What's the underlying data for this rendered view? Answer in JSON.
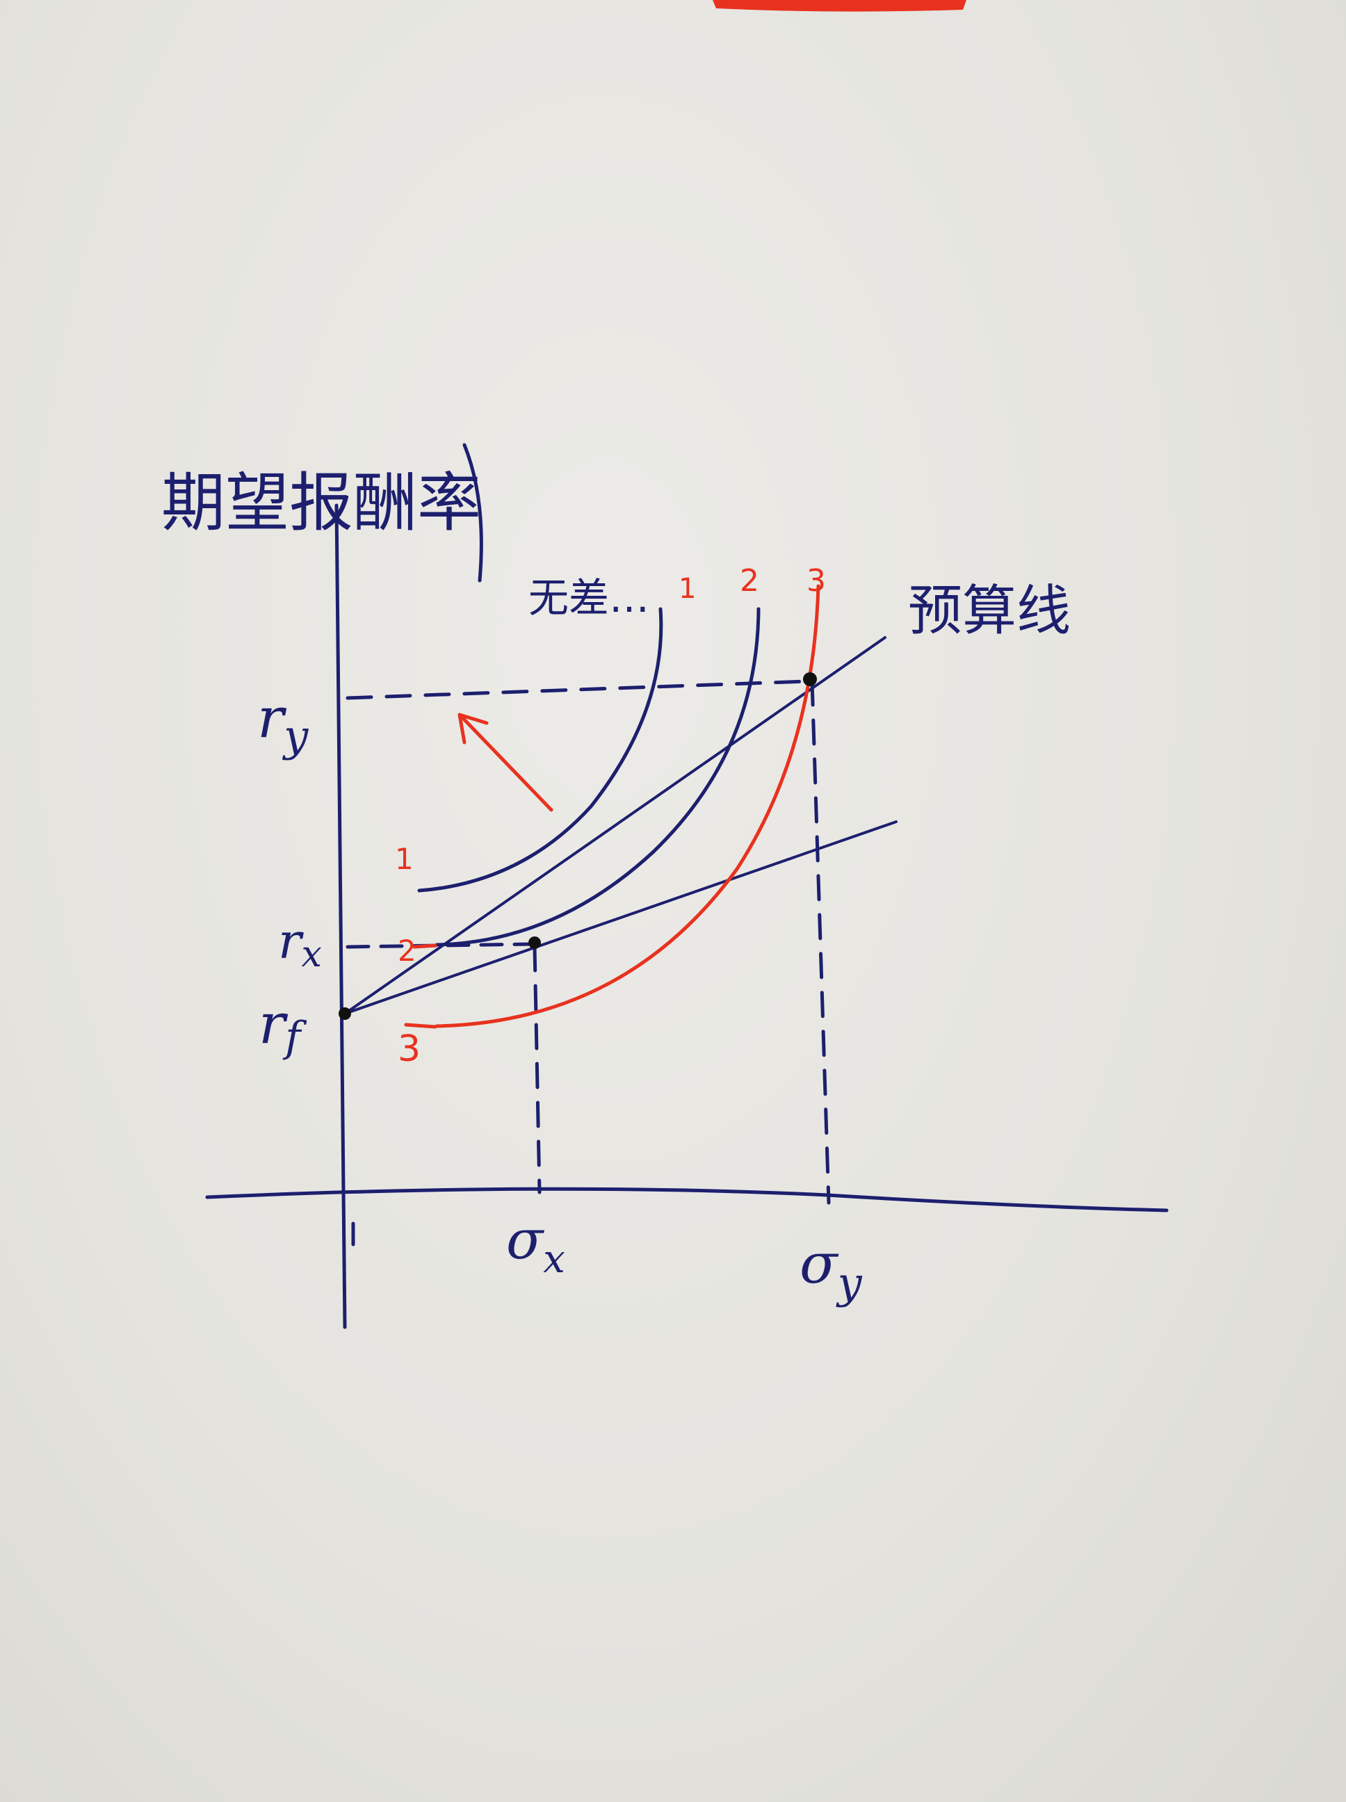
{
  "colors": {
    "ink_blue": "#1d1f6e",
    "ink_red": "#e8321f",
    "paper": "#e6e5e0"
  },
  "labels": {
    "y_axis": "期望报酬率",
    "indifference_curves": "无差…",
    "budget_line": "预算线",
    "r_y": "r",
    "r_y_sub": "y",
    "r_x": "r",
    "r_x_sub": "x",
    "r_f": "r",
    "r_f_sub": "f",
    "sigma_x": "σ",
    "sigma_x_sub": "x",
    "sigma_y": "σ",
    "sigma_y_sub": "y"
  },
  "curve_labels": {
    "top": [
      "1",
      "2",
      "3"
    ],
    "left": [
      "1",
      "2",
      "3"
    ]
  }
}
